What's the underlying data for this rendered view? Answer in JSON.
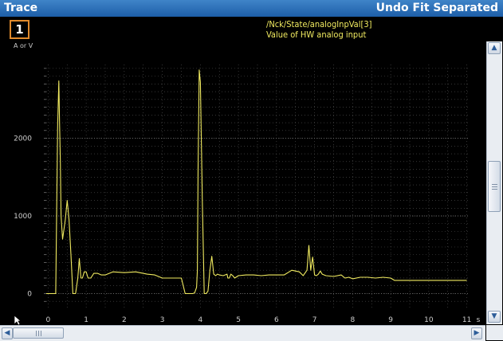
{
  "window": {
    "title": "Trace",
    "action": "Undo Fit Separated"
  },
  "trace": {
    "channel": "1",
    "signal_path": "/Nck/State/analogInpVal[3]",
    "signal_desc": "Value of HW analog input",
    "trace_color": "#f0ea60",
    "background": "#000000"
  },
  "scrollbar": {
    "up_icon": "chevron-up-icon",
    "down_icon": "chevron-down-icon",
    "left_icon": "chevron-left-icon",
    "right_icon": "chevron-right-icon"
  },
  "chart_data": {
    "type": "line",
    "ylabel": "A or V",
    "xlabel": "s",
    "xlim": [
      -0.05,
      11.05
    ],
    "ylim": [
      -180,
      2950
    ],
    "xticks": [
      0,
      1,
      2,
      3,
      4,
      5,
      6,
      7,
      8,
      9,
      10,
      11
    ],
    "xtick_labels": [
      "0",
      "1",
      "2",
      "3",
      "4",
      "5",
      "6",
      "7",
      "8",
      "9",
      "10",
      "11"
    ],
    "yticks": [
      0,
      1000,
      2000
    ],
    "ytick_labels": [
      "0",
      "1000",
      "2000"
    ],
    "grid": true,
    "series": [
      {
        "color": "#f0ea60",
        "x": [
          -0.05,
          0.15,
          0.2,
          0.25,
          0.28,
          0.3,
          0.32,
          0.34,
          0.38,
          0.45,
          0.5,
          0.55,
          0.6,
          0.65,
          0.72,
          0.78,
          0.82,
          0.86,
          0.9,
          0.95,
          1.0,
          1.05,
          1.12,
          1.2,
          1.3,
          1.4,
          1.5,
          1.7,
          2.0,
          2.3,
          2.6,
          2.8,
          3.0,
          3.1,
          3.2,
          3.3,
          3.5,
          3.6,
          3.7,
          3.75,
          3.8,
          3.85,
          3.9,
          3.92,
          3.94,
          3.97,
          4.0,
          4.05,
          4.1,
          4.15,
          4.2,
          4.25,
          4.3,
          4.35,
          4.4,
          4.45,
          4.5,
          4.6,
          4.7,
          4.72,
          4.76,
          4.8,
          4.85,
          4.9,
          5.0,
          5.2,
          5.4,
          5.6,
          5.8,
          6.0,
          6.2,
          6.4,
          6.6,
          6.7,
          6.8,
          6.85,
          6.9,
          6.95,
          7.0,
          7.05,
          7.1,
          7.15,
          7.2,
          7.3,
          7.5,
          7.7,
          7.8,
          7.9,
          8.0,
          8.2,
          8.4,
          8.6,
          8.8,
          9.0,
          9.1,
          9.15,
          9.2,
          10.0,
          11.0
        ],
        "y": [
          0,
          0,
          0,
          2150,
          2740,
          2200,
          1700,
          1000,
          700,
          950,
          1200,
          950,
          500,
          0,
          0,
          200,
          450,
          200,
          200,
          280,
          280,
          200,
          200,
          260,
          260,
          240,
          240,
          280,
          270,
          280,
          250,
          240,
          200,
          200,
          200,
          200,
          200,
          0,
          0,
          0,
          0,
          10,
          80,
          300,
          1600,
          2880,
          2720,
          1200,
          0,
          0,
          30,
          300,
          480,
          250,
          230,
          250,
          240,
          230,
          250,
          200,
          200,
          250,
          230,
          200,
          230,
          240,
          240,
          230,
          240,
          240,
          240,
          300,
          280,
          230,
          300,
          620,
          300,
          470,
          240,
          230,
          250,
          290,
          250,
          230,
          220,
          240,
          200,
          210,
          190,
          210,
          210,
          200,
          210,
          200,
          170,
          170,
          170,
          170,
          170
        ]
      }
    ]
  }
}
